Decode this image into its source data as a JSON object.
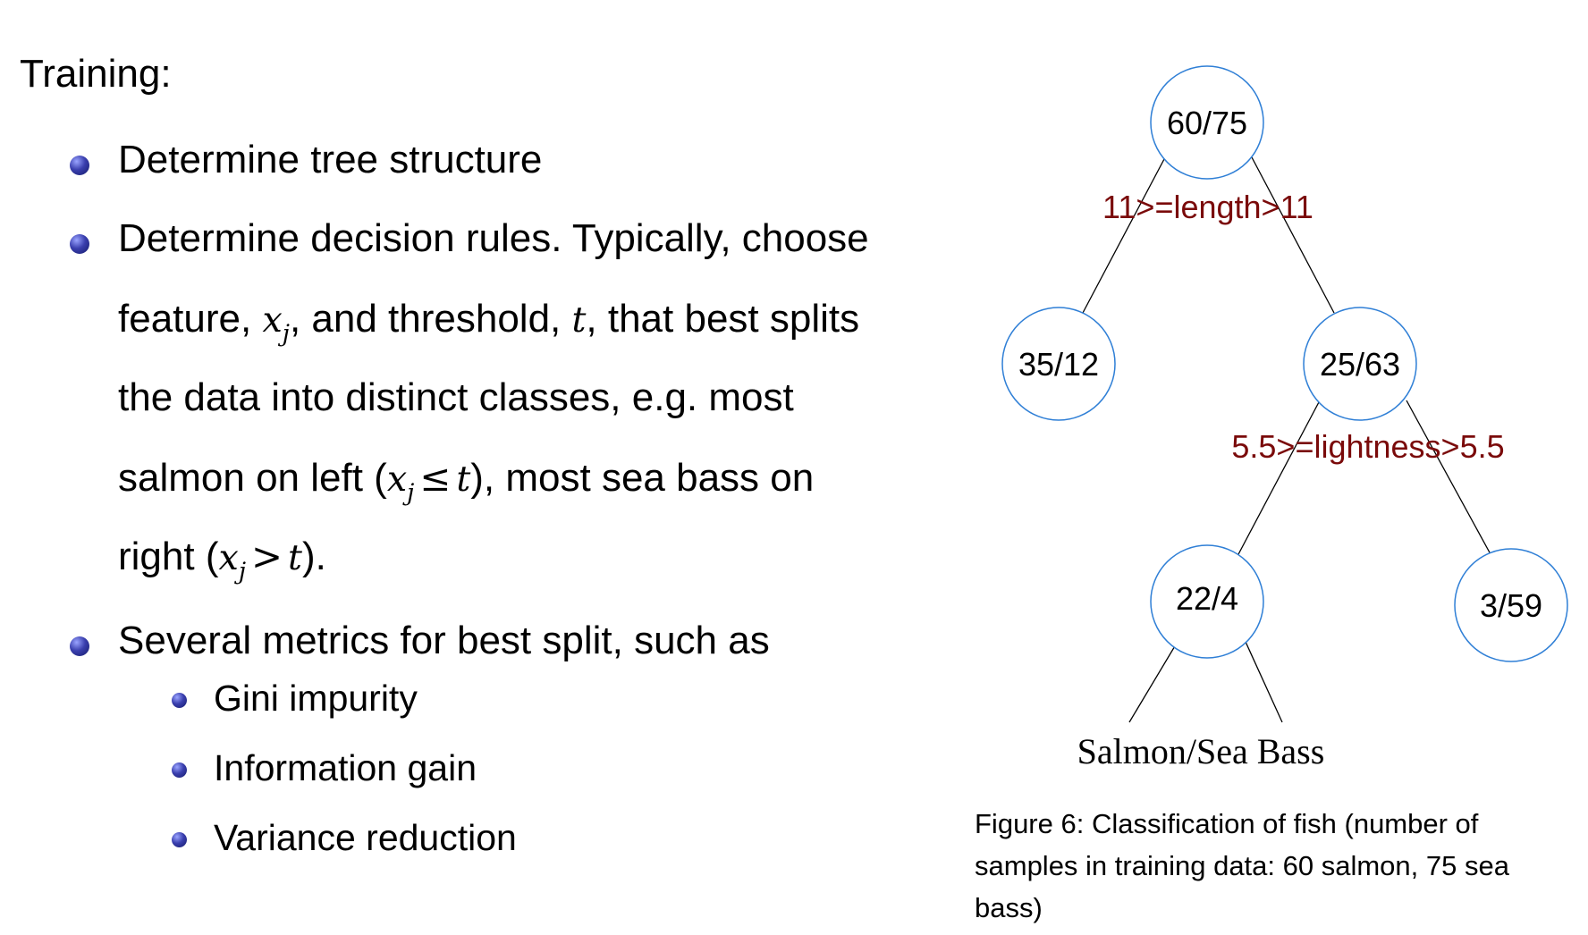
{
  "heading": "Training:",
  "bullets": {
    "b1": "Determine tree structure",
    "b2_line1": "Determine decision rules. Typically, choose",
    "b2_line2_pre": "feature, ",
    "b2_var_x": "x",
    "b2_var_j": "j",
    "b2_line2_mid": ", and threshold, ",
    "b2_var_t": "t",
    "b2_line2_post": ", that best splits",
    "b2_line3": "the data into distinct classes, e.g. most",
    "b2_line4_pre": "salmon on left (",
    "op_le": "≤",
    "b2_line4_post": "), most sea bass on",
    "b2_line5_pre": "right (",
    "op_gt": ">",
    "b2_line5_post": ").",
    "b3": "Several metrics for best split, such as",
    "sub_items": [
      "Gini impurity",
      "Information gain",
      "Variance reduction"
    ]
  },
  "tree": {
    "root": "60/75",
    "left1": "35/12",
    "right1": "25/63",
    "left2": "22/4",
    "right2": "3/59",
    "split1": "11>=length>11",
    "split2": "5.5>=lightness>5.5",
    "leaf_label": "Salmon/Sea Bass",
    "node_stroke": "#2f7fd6",
    "split_color": "#7a0a0a"
  },
  "caption": "Figure 6: Classification of fish (number of samples in training data: 60 salmon, 75 sea bass)"
}
